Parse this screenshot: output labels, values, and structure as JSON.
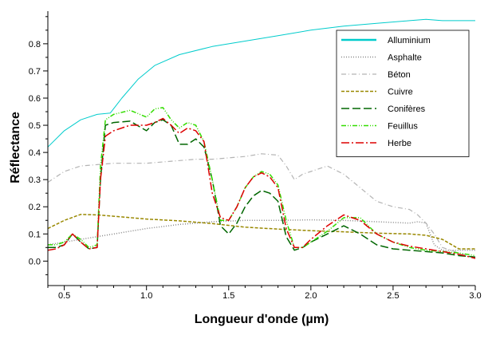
{
  "chart_data": {
    "type": "line",
    "title": "",
    "xlabel": "Longueur d'onde (µm)",
    "ylabel": "Réflectance",
    "xlim": [
      0.4,
      3.0
    ],
    "ylim": [
      -0.09,
      0.92
    ],
    "xticks": [
      0.5,
      1.0,
      1.5,
      2.0,
      2.5,
      3.0
    ],
    "xtick_labels": [
      "0.5",
      "1.0",
      "1.5",
      "2.0",
      "2.5",
      "3.0"
    ],
    "yticks": [
      0.0,
      0.1,
      0.2,
      0.3,
      0.4,
      0.5,
      0.6,
      0.7,
      0.8
    ],
    "ytick_labels": [
      "0.0",
      "0.1",
      "0.2",
      "0.3",
      "0.4",
      "0.5",
      "0.6",
      "0.7",
      "0.8"
    ],
    "grid": false,
    "legend_position": "top-right",
    "series": [
      {
        "name": "Alluminium",
        "color": "#00cccc",
        "dash": "solid",
        "width": 1,
        "legend_width": 2.5,
        "x": [
          0.4,
          0.5,
          0.6,
          0.7,
          0.78,
          0.85,
          0.95,
          1.05,
          1.2,
          1.4,
          1.6,
          1.8,
          2.0,
          2.2,
          2.4,
          2.6,
          2.7,
          2.8,
          3.0
        ],
        "y": [
          0.42,
          0.48,
          0.52,
          0.54,
          0.545,
          0.6,
          0.67,
          0.72,
          0.76,
          0.79,
          0.81,
          0.83,
          0.85,
          0.865,
          0.875,
          0.885,
          0.89,
          0.885,
          0.885
        ]
      },
      {
        "name": "Asphalte",
        "color": "#888888",
        "dash": "1,2",
        "width": 1.5,
        "x": [
          0.4,
          0.6,
          0.8,
          1.0,
          1.2,
          1.4,
          1.6,
          1.8,
          2.0,
          2.2,
          2.4,
          2.6,
          2.65,
          2.7,
          2.75,
          2.8,
          2.9,
          3.0
        ],
        "y": [
          0.06,
          0.08,
          0.1,
          0.12,
          0.135,
          0.145,
          0.15,
          0.15,
          0.152,
          0.15,
          0.145,
          0.14,
          0.145,
          0.14,
          0.06,
          0.04,
          0.04,
          0.04
        ]
      },
      {
        "name": "Béton",
        "color": "#b4b4b4",
        "dash": "6,3,1,3",
        "width": 1.2,
        "x": [
          0.4,
          0.5,
          0.6,
          0.7,
          0.8,
          0.9,
          1.0,
          1.1,
          1.2,
          1.3,
          1.4,
          1.5,
          1.6,
          1.7,
          1.8,
          1.85,
          1.9,
          1.95,
          2.0,
          2.1,
          2.2,
          2.3,
          2.4,
          2.5,
          2.6,
          2.65,
          2.7,
          2.75,
          2.8,
          2.9,
          3.0
        ],
        "y": [
          0.29,
          0.33,
          0.35,
          0.355,
          0.36,
          0.36,
          0.36,
          0.365,
          0.37,
          0.375,
          0.375,
          0.38,
          0.385,
          0.395,
          0.39,
          0.35,
          0.3,
          0.32,
          0.33,
          0.35,
          0.32,
          0.27,
          0.22,
          0.2,
          0.19,
          0.17,
          0.14,
          0.1,
          0.05,
          0.03,
          0.01
        ]
      },
      {
        "name": "Cuivre",
        "color": "#998800",
        "dash": "4,2",
        "width": 1.5,
        "x": [
          0.4,
          0.5,
          0.6,
          0.7,
          0.8,
          1.0,
          1.2,
          1.4,
          1.6,
          1.8,
          2.0,
          2.2,
          2.4,
          2.6,
          2.7,
          2.8,
          2.9,
          3.0
        ],
        "y": [
          0.12,
          0.15,
          0.172,
          0.17,
          0.165,
          0.155,
          0.148,
          0.138,
          0.125,
          0.118,
          0.112,
          0.108,
          0.103,
          0.1,
          0.095,
          0.08,
          0.045,
          0.045
        ]
      },
      {
        "name": "Conifères",
        "color": "#006600",
        "dash": "10,4",
        "width": 1.5,
        "x": [
          0.4,
          0.45,
          0.5,
          0.55,
          0.6,
          0.65,
          0.7,
          0.72,
          0.75,
          0.8,
          0.9,
          1.0,
          1.05,
          1.1,
          1.15,
          1.2,
          1.25,
          1.3,
          1.35,
          1.4,
          1.45,
          1.5,
          1.55,
          1.6,
          1.65,
          1.7,
          1.75,
          1.8,
          1.85,
          1.9,
          1.95,
          2.0,
          2.1,
          2.2,
          2.3,
          2.4,
          2.5,
          2.6,
          2.7,
          2.8,
          2.9,
          3.0
        ],
        "y": [
          0.05,
          0.05,
          0.06,
          0.1,
          0.07,
          0.045,
          0.05,
          0.3,
          0.5,
          0.51,
          0.515,
          0.48,
          0.51,
          0.52,
          0.5,
          0.43,
          0.43,
          0.45,
          0.42,
          0.3,
          0.13,
          0.1,
          0.14,
          0.2,
          0.24,
          0.26,
          0.25,
          0.22,
          0.09,
          0.04,
          0.05,
          0.07,
          0.1,
          0.13,
          0.1,
          0.06,
          0.045,
          0.04,
          0.035,
          0.03,
          0.02,
          0.015
        ]
      },
      {
        "name": "Feuillus",
        "color": "#33dd00",
        "dash": "6,2,1,2,1,2",
        "width": 1.5,
        "x": [
          0.4,
          0.45,
          0.5,
          0.55,
          0.6,
          0.65,
          0.7,
          0.72,
          0.75,
          0.8,
          0.9,
          1.0,
          1.05,
          1.1,
          1.15,
          1.2,
          1.25,
          1.3,
          1.35,
          1.4,
          1.45,
          1.5,
          1.55,
          1.6,
          1.65,
          1.7,
          1.75,
          1.8,
          1.85,
          1.9,
          1.95,
          2.0,
          2.1,
          2.2,
          2.3,
          2.4,
          2.5,
          2.6,
          2.7,
          2.8,
          2.9,
          3.0
        ],
        "y": [
          0.06,
          0.06,
          0.07,
          0.1,
          0.08,
          0.05,
          0.06,
          0.35,
          0.52,
          0.54,
          0.555,
          0.53,
          0.56,
          0.565,
          0.52,
          0.49,
          0.51,
          0.5,
          0.44,
          0.3,
          0.15,
          0.15,
          0.2,
          0.27,
          0.31,
          0.33,
          0.32,
          0.28,
          0.15,
          0.05,
          0.05,
          0.07,
          0.11,
          0.16,
          0.16,
          0.1,
          0.07,
          0.05,
          0.04,
          0.035,
          0.03,
          0.02
        ]
      },
      {
        "name": "Herbe",
        "color": "#dd0000",
        "dash": "10,3,2,3",
        "width": 1.5,
        "x": [
          0.4,
          0.45,
          0.5,
          0.55,
          0.6,
          0.65,
          0.7,
          0.72,
          0.75,
          0.8,
          0.9,
          1.0,
          1.05,
          1.1,
          1.15,
          1.2,
          1.25,
          1.3,
          1.35,
          1.4,
          1.45,
          1.5,
          1.55,
          1.6,
          1.65,
          1.7,
          1.75,
          1.8,
          1.85,
          1.9,
          1.95,
          2.0,
          2.1,
          2.2,
          2.3,
          2.4,
          2.5,
          2.6,
          2.7,
          2.8,
          2.9,
          3.0
        ],
        "y": [
          0.04,
          0.045,
          0.06,
          0.1,
          0.07,
          0.045,
          0.05,
          0.3,
          0.46,
          0.48,
          0.5,
          0.5,
          0.51,
          0.525,
          0.5,
          0.47,
          0.49,
          0.48,
          0.44,
          0.25,
          0.16,
          0.15,
          0.2,
          0.27,
          0.31,
          0.325,
          0.31,
          0.27,
          0.12,
          0.05,
          0.05,
          0.08,
          0.13,
          0.17,
          0.15,
          0.1,
          0.07,
          0.055,
          0.045,
          0.035,
          0.025,
          0.01
        ]
      }
    ]
  }
}
